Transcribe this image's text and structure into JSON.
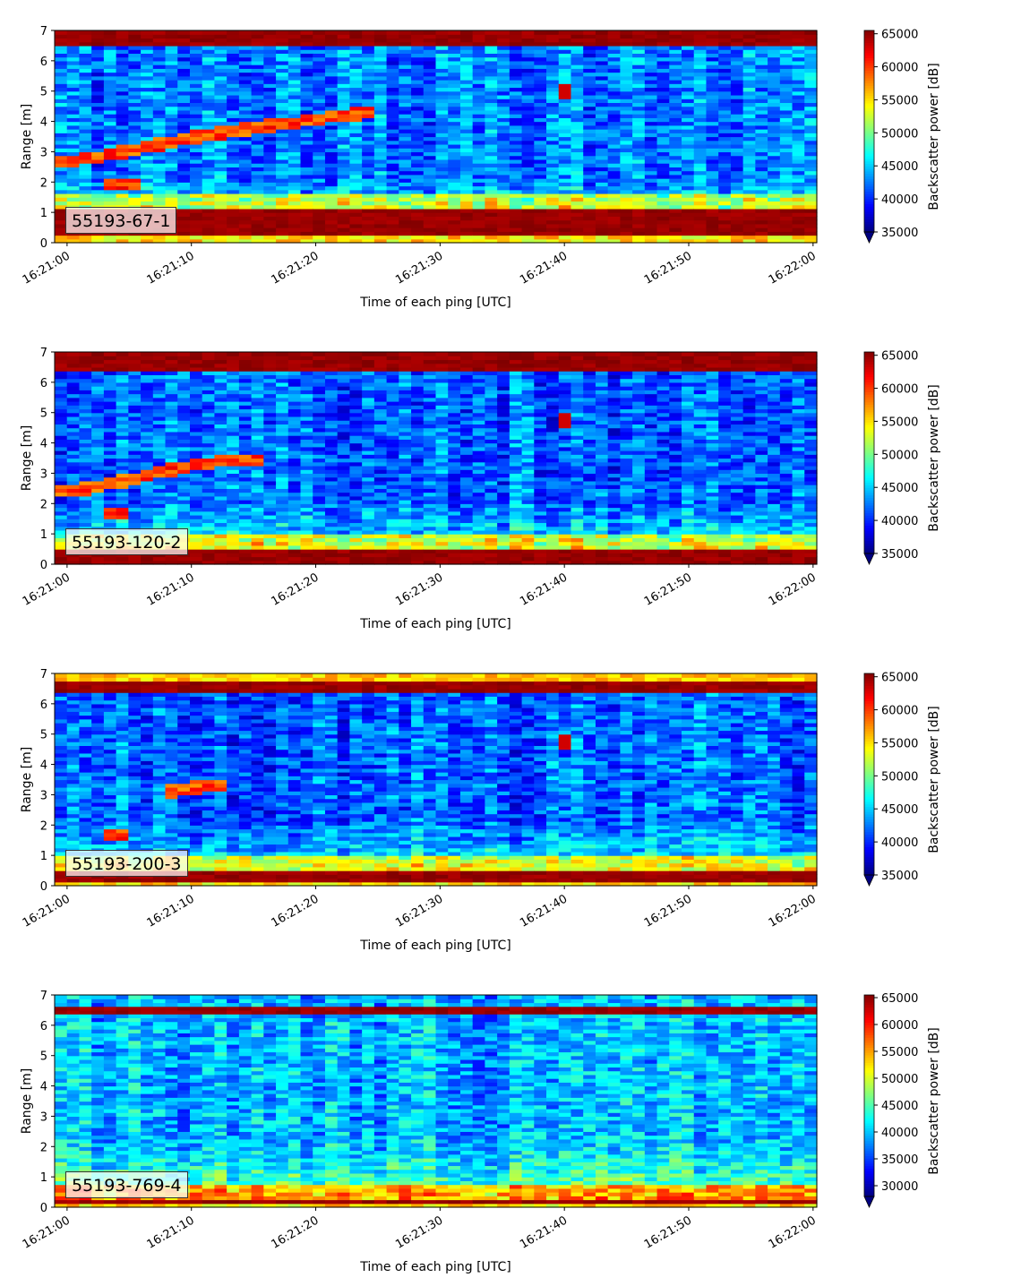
{
  "chart_data": [
    {
      "type": "heatmap",
      "label": "55193-67-1",
      "xlabel": "Time of each ping [UTC]",
      "ylabel": "Range [m]",
      "colorbar_label": "Backscatter power [dB]",
      "x_ticks": [
        "16:21:00",
        "16:21:10",
        "16:21:20",
        "16:21:30",
        "16:21:40",
        "16:21:50",
        "16:22:00"
      ],
      "y_ticks": [
        0,
        1,
        2,
        3,
        4,
        5,
        6,
        7
      ],
      "colorbar_ticks": [
        35000,
        40000,
        45000,
        50000,
        55000,
        60000,
        65000
      ],
      "ylim": [
        0,
        7
      ],
      "xlim_seconds": [
        -1,
        60.3
      ],
      "clim": [
        35000,
        65500
      ],
      "colormap": "jet",
      "colorbar_extend": "min",
      "features": {
        "bottom_band": [
          0.25,
          1.15
        ],
        "top_band": [
          6.45,
          7.0
        ],
        "target_track": [
          [
            -1,
            2.7
          ],
          [
            0,
            2.7
          ],
          [
            4,
            2.95
          ],
          [
            8,
            3.3
          ],
          [
            11,
            3.55
          ],
          [
            16,
            3.85
          ],
          [
            25,
            4.35
          ]
        ],
        "target_track_2": [
          [
            3,
            1.9
          ],
          [
            6,
            1.9
          ]
        ],
        "spot": [
          [
            40,
            4.95
          ]
        ],
        "mid_level": 0.25
      }
    },
    {
      "type": "heatmap",
      "label": "55193-120-2",
      "xlabel": "Time of each ping [UTC]",
      "ylabel": "Range [m]",
      "colorbar_label": "Backscatter power [dB]",
      "x_ticks": [
        "16:21:00",
        "16:21:10",
        "16:21:20",
        "16:21:30",
        "16:21:40",
        "16:21:50",
        "16:22:00"
      ],
      "y_ticks": [
        0,
        1,
        2,
        3,
        4,
        5,
        6,
        7
      ],
      "colorbar_ticks": [
        35000,
        40000,
        45000,
        50000,
        55000,
        60000,
        65000
      ],
      "ylim": [
        0,
        7
      ],
      "xlim_seconds": [
        -1,
        60.3
      ],
      "clim": [
        35000,
        65500
      ],
      "colormap": "jet",
      "colorbar_extend": "min",
      "features": {
        "bottom_band": [
          0.05,
          0.5
        ],
        "top_band": [
          6.35,
          7.0
        ],
        "target_track": [
          [
            -1,
            2.45
          ],
          [
            1,
            2.45
          ],
          [
            6,
            2.9
          ],
          [
            11,
            3.35
          ],
          [
            16,
            3.5
          ]
        ],
        "target_track_2": [
          [
            3,
            1.65
          ],
          [
            5,
            1.65
          ]
        ],
        "spot": [
          [
            40,
            4.75
          ]
        ],
        "mid_level": 0.22
      }
    },
    {
      "type": "heatmap",
      "label": "55193-200-3",
      "xlabel": "Time of each ping [UTC]",
      "ylabel": "Range [m]",
      "colorbar_label": "Backscatter power [dB]",
      "x_ticks": [
        "16:21:00",
        "16:21:10",
        "16:21:20",
        "16:21:30",
        "16:21:40",
        "16:21:50",
        "16:22:00"
      ],
      "y_ticks": [
        0,
        1,
        2,
        3,
        4,
        5,
        6,
        7
      ],
      "colorbar_ticks": [
        35000,
        40000,
        45000,
        50000,
        55000,
        60000,
        65000
      ],
      "ylim": [
        0,
        7
      ],
      "xlim_seconds": [
        -1,
        60.3
      ],
      "clim": [
        35000,
        65500
      ],
      "colormap": "jet",
      "colorbar_extend": "min",
      "features": {
        "bottom_band": [
          0.1,
          0.45
        ],
        "top_band": [
          6.35,
          6.75
        ],
        "top_edge": [
          6.75,
          7.0
        ],
        "target_track": [
          [
            8,
            3.1
          ],
          [
            11,
            3.3
          ],
          [
            13,
            3.3
          ]
        ],
        "target_track_2": [
          [
            3,
            1.65
          ],
          [
            5,
            1.65
          ]
        ],
        "spot": [
          [
            40,
            4.7
          ]
        ],
        "mid_level": 0.22
      }
    },
    {
      "type": "heatmap",
      "label": "55193-769-4",
      "xlabel": "Time of each ping [UTC]",
      "ylabel": "Range [m]",
      "colorbar_label": "Backscatter power [dB]",
      "x_ticks": [
        "16:21:00",
        "16:21:10",
        "16:21:20",
        "16:21:30",
        "16:21:40",
        "16:21:50",
        "16:22:00"
      ],
      "y_ticks": [
        0,
        1,
        2,
        3,
        4,
        5,
        6,
        7
      ],
      "colorbar_ticks": [
        30000,
        35000,
        40000,
        45000,
        50000,
        55000,
        60000,
        65000
      ],
      "ylim": [
        0,
        7
      ],
      "xlim_seconds": [
        -1,
        60.3
      ],
      "clim": [
        28000,
        65500
      ],
      "colormap": "jet",
      "colorbar_extend": "min",
      "features": {
        "bottom_band": [
          0.15,
          0.3
        ],
        "top_band": [
          6.35,
          6.6
        ],
        "target_track": [],
        "target_track_2": [],
        "spot": [],
        "mid_level": 0.3
      }
    }
  ]
}
